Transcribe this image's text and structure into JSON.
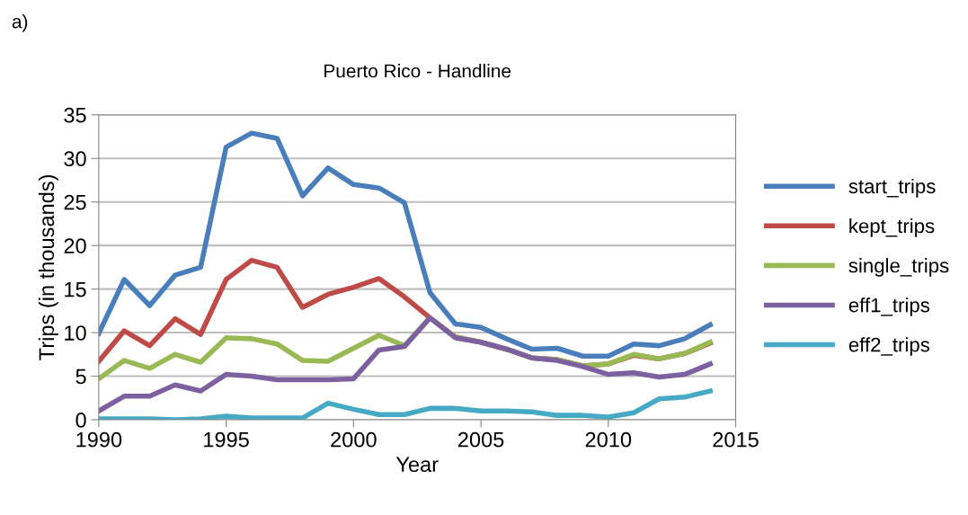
{
  "chart_data": {
    "type": "line",
    "title": "Puerto Rico - Handline",
    "xlabel": "Year",
    "ylabel": "Trips (in thousands)",
    "annotations": [
      "a)"
    ],
    "x": [
      1990,
      1991,
      1992,
      1993,
      1994,
      1995,
      1996,
      1997,
      1998,
      1999,
      2000,
      2001,
      2002,
      2003,
      2004,
      2005,
      2006,
      2007,
      2008,
      2009,
      2010,
      2011,
      2012,
      2013,
      2014
    ],
    "series": [
      {
        "name": "start_trips",
        "color": "#4a7ebb",
        "values": [
          9.9,
          16.1,
          13.1,
          16.6,
          17.5,
          31.3,
          32.9,
          32.3,
          25.7,
          28.9,
          27.0,
          26.6,
          24.9,
          14.6,
          11.0,
          10.6,
          9.3,
          8.1,
          8.2,
          7.3,
          7.3,
          8.7,
          8.5,
          9.3,
          10.9
        ]
      },
      {
        "name": "kept_trips",
        "color": "#be4b48",
        "values": [
          6.7,
          10.2,
          8.5,
          11.6,
          9.8,
          16.1,
          18.3,
          17.5,
          12.9,
          14.4,
          15.2,
          16.2,
          14.1,
          11.7,
          9.5,
          8.9,
          8.1,
          7.1,
          6.9,
          6.2,
          6.4,
          7.4,
          7.0,
          7.6,
          8.8
        ]
      },
      {
        "name": "single_trips",
        "color": "#98b954",
        "values": [
          4.7,
          6.8,
          5.9,
          7.5,
          6.6,
          9.4,
          9.3,
          8.7,
          6.8,
          6.7,
          8.2,
          9.7,
          8.5,
          11.7,
          9.5,
          8.9,
          8.1,
          7.1,
          6.9,
          6.2,
          6.4,
          7.5,
          7.0,
          7.6,
          8.9
        ]
      },
      {
        "name": "eff1_trips",
        "color": "#7d60a0",
        "values": [
          1.0,
          2.7,
          2.7,
          4.0,
          3.3,
          5.2,
          5.0,
          4.6,
          4.6,
          4.6,
          4.7,
          8.0,
          8.4,
          11.7,
          9.4,
          8.9,
          8.1,
          7.1,
          6.8,
          6.1,
          5.2,
          5.4,
          4.9,
          5.2,
          6.4
        ]
      },
      {
        "name": "eff2_trips",
        "color": "#46aac5",
        "values": [
          0.1,
          0.1,
          0.1,
          0.0,
          0.1,
          0.4,
          0.2,
          0.2,
          0.2,
          1.9,
          1.2,
          0.6,
          0.6,
          1.3,
          1.3,
          1.0,
          1.0,
          0.9,
          0.5,
          0.5,
          0.3,
          0.8,
          2.4,
          2.6,
          3.3
        ]
      }
    ],
    "xlim": [
      1990,
      2015
    ],
    "xticks": [
      1990,
      1995,
      2000,
      2005,
      2010,
      2015
    ],
    "ylim": [
      0,
      35
    ],
    "yticks": [
      0,
      5,
      10,
      15,
      20,
      25,
      30,
      35
    ],
    "grid": "y",
    "legend": "right",
    "marker": "none",
    "line_style": "solid"
  }
}
